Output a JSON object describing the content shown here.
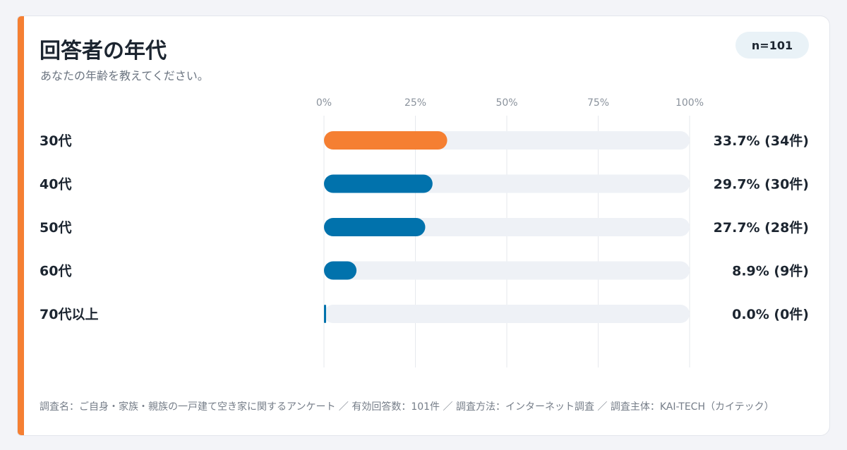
{
  "header": {
    "title": "回答者の年代",
    "subtitle": "あなたの年齢を教えてください。",
    "n_badge": "n=101"
  },
  "colors": {
    "highlight": "#f57f32",
    "primary": "#0172ac",
    "track": "#eef1f6",
    "grid": "#e6e9ee"
  },
  "chart_data": {
    "type": "bar",
    "orientation": "horizontal",
    "categories": [
      "30代",
      "40代",
      "50代",
      "60代",
      "70代以上"
    ],
    "values": [
      33.7,
      29.7,
      27.7,
      8.9,
      0.0
    ],
    "counts": [
      34,
      30,
      28,
      9,
      0
    ],
    "value_labels": [
      "33.7% (34件)",
      "29.7% (30件)",
      "27.7% (28件)",
      "8.9% (9件)",
      "0.0% (0件)"
    ],
    "highlight_index": 0,
    "xlim": [
      0,
      100
    ],
    "xticks": [
      0,
      25,
      50,
      75,
      100
    ],
    "xtick_labels": [
      "0%",
      "25%",
      "50%",
      "75%",
      "100%"
    ],
    "grid": true
  },
  "footnote": "調査名：ご自身・家族・親族の一戸建て空き家に関するアンケート ／ 有効回答数：101件 ／ 調査方法：インターネット調査 ／ 調査主体：KAI-TECH（カイテック）"
}
